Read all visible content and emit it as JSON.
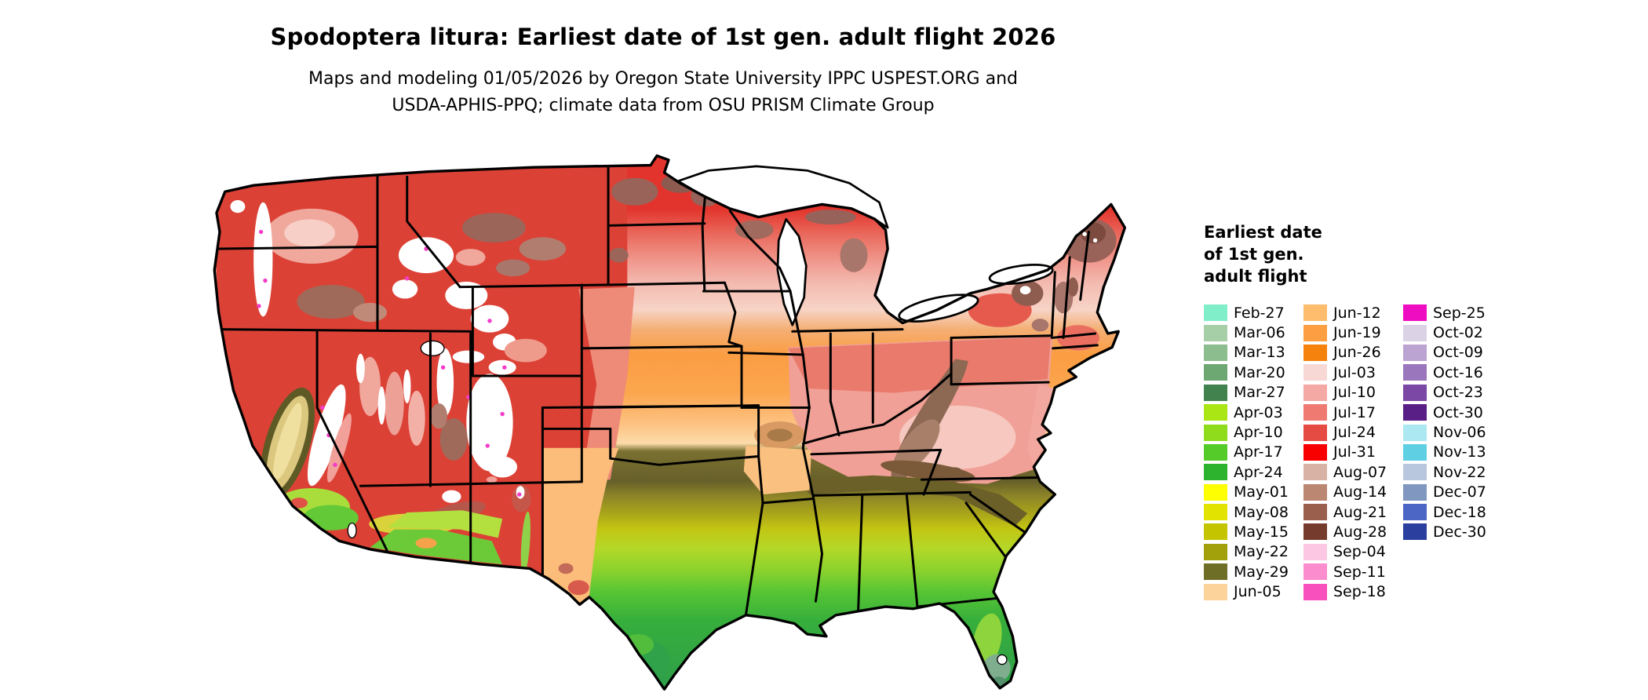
{
  "header": {
    "title": "Spodoptera litura: Earliest date of 1st gen. adult flight 2026",
    "subtitle_lines": [
      "Maps and modeling 01/05/2026 by Oregon State University IPPC USPEST.ORG and",
      "USDA-APHIS-PPQ; climate data from OSU PRISM Climate Group"
    ]
  },
  "legend": {
    "title_lines": [
      "Earliest date",
      "of 1st gen.",
      "adult flight"
    ],
    "columns": [
      {
        "entries": [
          {
            "label": "Feb-27",
            "color": "#80eec9"
          },
          {
            "label": "Mar-06",
            "color": "#a7cfa7"
          },
          {
            "label": "Mar-13",
            "color": "#8bbd8f"
          },
          {
            "label": "Mar-20",
            "color": "#6da873"
          },
          {
            "label": "Mar-27",
            "color": "#41824e"
          },
          {
            "label": "Apr-03",
            "color": "#a9e614"
          },
          {
            "label": "Apr-10",
            "color": "#8fdc1c"
          },
          {
            "label": "Apr-17",
            "color": "#55cb2a"
          },
          {
            "label": "Apr-24",
            "color": "#2eb32e"
          },
          {
            "label": "May-01",
            "color": "#feff00"
          },
          {
            "label": "May-08",
            "color": "#e3e300"
          },
          {
            "label": "May-15",
            "color": "#c5c400"
          },
          {
            "label": "May-22",
            "color": "#a3a10b"
          },
          {
            "label": "May-29",
            "color": "#6f6e26"
          },
          {
            "label": "Jun-05",
            "color": "#fcd49b"
          }
        ]
      },
      {
        "entries": [
          {
            "label": "Jun-12",
            "color": "#fdbd6d"
          },
          {
            "label": "Jun-19",
            "color": "#fd9e42"
          },
          {
            "label": "Jun-26",
            "color": "#f5820d"
          },
          {
            "label": "Jul-03",
            "color": "#f8d8d4"
          },
          {
            "label": "Jul-10",
            "color": "#f4a9a4"
          },
          {
            "label": "Jul-17",
            "color": "#ee7a72"
          },
          {
            "label": "Jul-24",
            "color": "#e64b43"
          },
          {
            "label": "Jul-31",
            "color": "#f80000"
          },
          {
            "label": "Aug-07",
            "color": "#d8b3a5"
          },
          {
            "label": "Aug-14",
            "color": "#bb8672"
          },
          {
            "label": "Aug-21",
            "color": "#9a5f4d"
          },
          {
            "label": "Aug-28",
            "color": "#753c2d"
          },
          {
            "label": "Sep-04",
            "color": "#fcc7e2"
          },
          {
            "label": "Sep-11",
            "color": "#fb8ccd"
          },
          {
            "label": "Sep-18",
            "color": "#f850bc"
          }
        ]
      },
      {
        "entries": [
          {
            "label": "Sep-25",
            "color": "#ef0dc2"
          },
          {
            "label": "Oct-02",
            "color": "#dcd2e6"
          },
          {
            "label": "Oct-09",
            "color": "#bba4d2"
          },
          {
            "label": "Oct-16",
            "color": "#9a77bd"
          },
          {
            "label": "Oct-23",
            "color": "#7b49a5"
          },
          {
            "label": "Oct-30",
            "color": "#591f86"
          },
          {
            "label": "Nov-06",
            "color": "#ace8f2"
          },
          {
            "label": "Nov-13",
            "color": "#5fd0e4"
          },
          {
            "label": "Nov-22",
            "color": "#b8c6de"
          },
          {
            "label": "Dec-07",
            "color": "#8098c0"
          },
          {
            "label": "Dec-18",
            "color": "#4b66c4"
          },
          {
            "label": "Dec-30",
            "color": "#2a3f9e"
          }
        ]
      }
    ]
  }
}
